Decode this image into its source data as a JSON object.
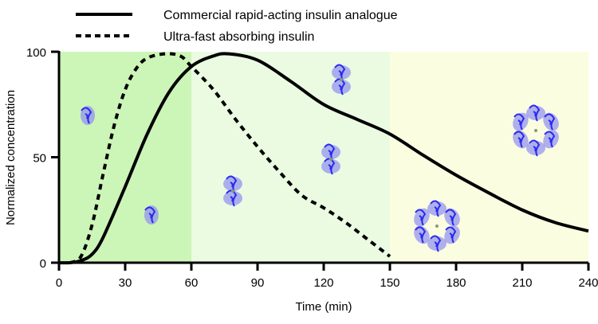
{
  "chart_data": {
    "type": "line",
    "xlabel": "Time (min)",
    "ylabel": "Normalized concentration",
    "xlim": [
      0,
      240
    ],
    "ylim": [
      0,
      100
    ],
    "xticks": [
      "0",
      "30",
      "60",
      "90",
      "120",
      "150",
      "180",
      "210",
      "240"
    ],
    "yticks": [
      "0",
      "50",
      "100"
    ],
    "grid": false,
    "legend_position": "top-left",
    "regions": [
      {
        "from": 0,
        "to": 60,
        "color": "#ccf5b8"
      },
      {
        "from": 60,
        "to": 150,
        "color": "#eafbe2"
      },
      {
        "from": 150,
        "to": 240,
        "color": "#fbfde0"
      }
    ],
    "series": [
      {
        "name": "Commercial rapid-acting insulin analogue",
        "style": "solid",
        "x": [
          0,
          5,
          10,
          15,
          20,
          30,
          40,
          50,
          60,
          70,
          77,
          90,
          105,
          120,
          135,
          150,
          165,
          180,
          195,
          210,
          225,
          240
        ],
        "y": [
          0,
          0,
          1,
          4,
          12,
          36,
          61,
          81,
          93,
          98,
          99,
          96,
          86,
          75,
          68,
          61,
          51,
          41.5,
          33,
          25,
          19,
          15
        ]
      },
      {
        "name": "Ultra-fast absorbing insulin",
        "style": "dashed",
        "x": [
          5,
          10,
          15,
          20,
          25,
          30,
          35,
          40,
          48,
          55,
          60,
          70,
          80,
          90,
          100,
          110,
          120,
          130,
          140,
          150
        ],
        "y": [
          0,
          3,
          18,
          42,
          65,
          82,
          92,
          97,
          99,
          98,
          93,
          82,
          68,
          55,
          43,
          32,
          26,
          19,
          11,
          3
        ]
      }
    ],
    "molecule_color": "#2a2af0"
  }
}
